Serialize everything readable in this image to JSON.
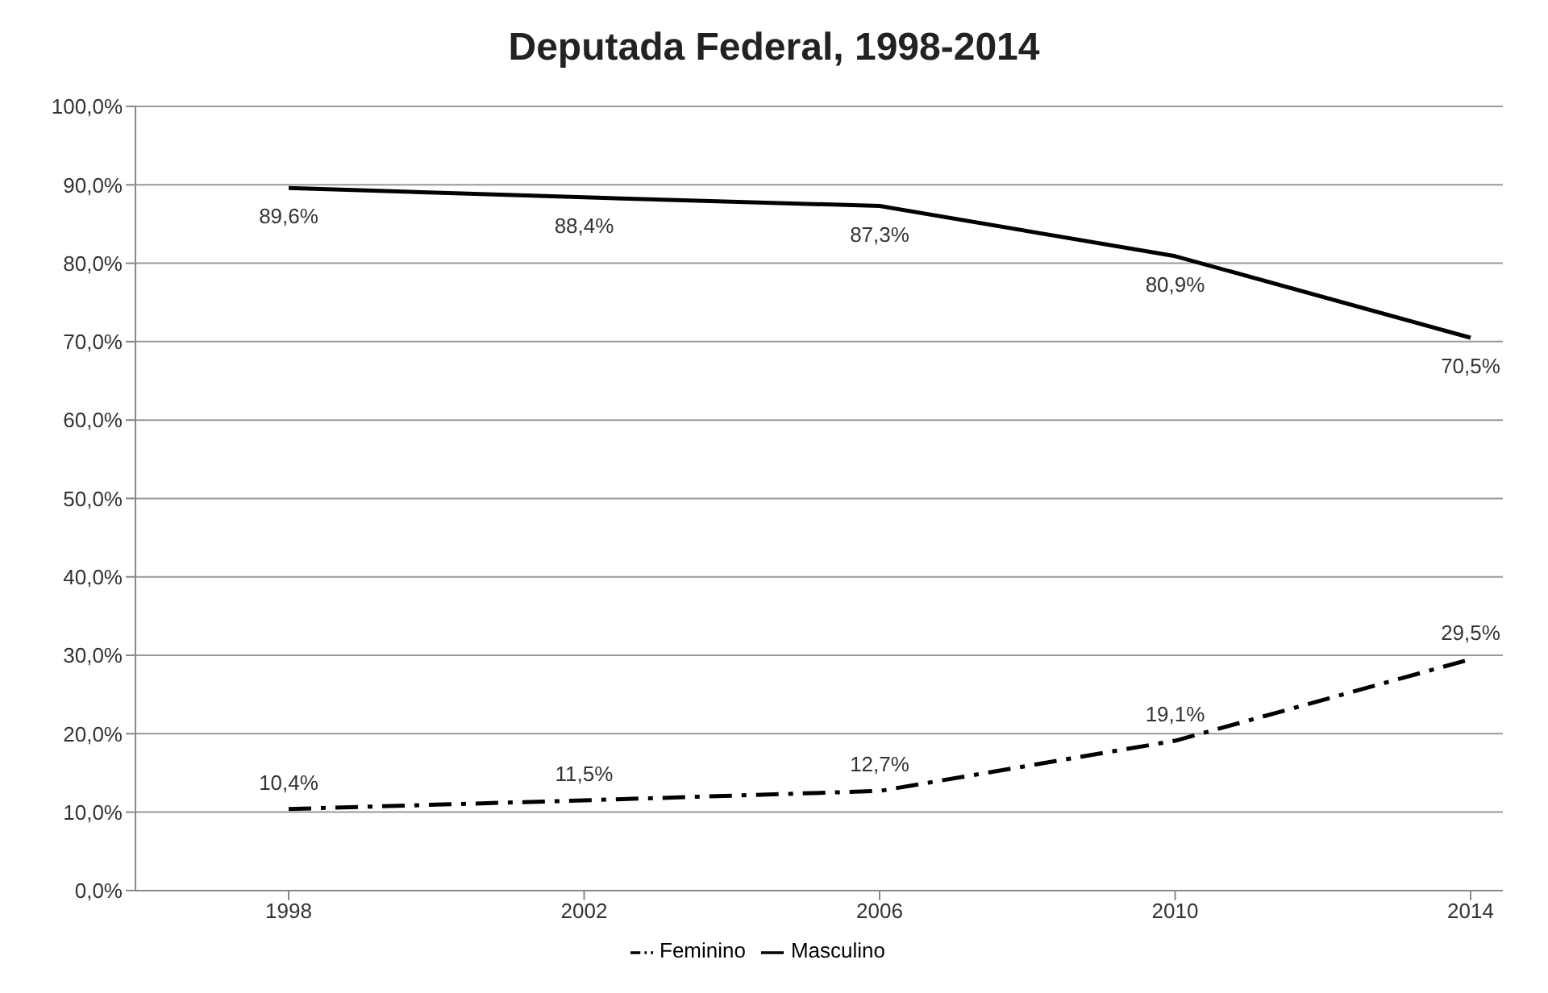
{
  "chart_data": {
    "type": "line",
    "title": "Deputada Federal, 1998-2014",
    "categories": [
      "1998",
      "2002",
      "2006",
      "2010",
      "2014"
    ],
    "series": [
      {
        "name": "Feminino",
        "color": "#000000",
        "line_style": "dashed",
        "values": [
          10.4,
          11.5,
          12.7,
          19.1,
          29.5
        ],
        "value_labels": [
          "10,4%",
          "11,5%",
          "12,7%",
          "19,1%",
          "29,5%"
        ]
      },
      {
        "name": "Masculino",
        "color": "#000000",
        "line_style": "solid",
        "values": [
          89.6,
          88.4,
          87.3,
          80.9,
          70.5
        ],
        "value_labels": [
          "89,6%",
          "88,4%",
          "87,3%",
          "80,9%",
          "70,5%"
        ]
      }
    ],
    "ylim": [
      0,
      100
    ],
    "yticks": [
      {
        "value": 0,
        "label": "0,0%"
      },
      {
        "value": 10,
        "label": "10,0%"
      },
      {
        "value": 20,
        "label": "20,0%"
      },
      {
        "value": 30,
        "label": "30,0%"
      },
      {
        "value": 40,
        "label": "40,0%"
      },
      {
        "value": 50,
        "label": "50,0%"
      },
      {
        "value": 60,
        "label": "60,0%"
      },
      {
        "value": 70,
        "label": "70,0%"
      },
      {
        "value": 80,
        "label": "80,0%"
      },
      {
        "value": 90,
        "label": "90,0%"
      },
      {
        "value": 100,
        "label": "100,0%"
      }
    ],
    "grid": "y",
    "legend": "bottom",
    "marker": "none"
  }
}
